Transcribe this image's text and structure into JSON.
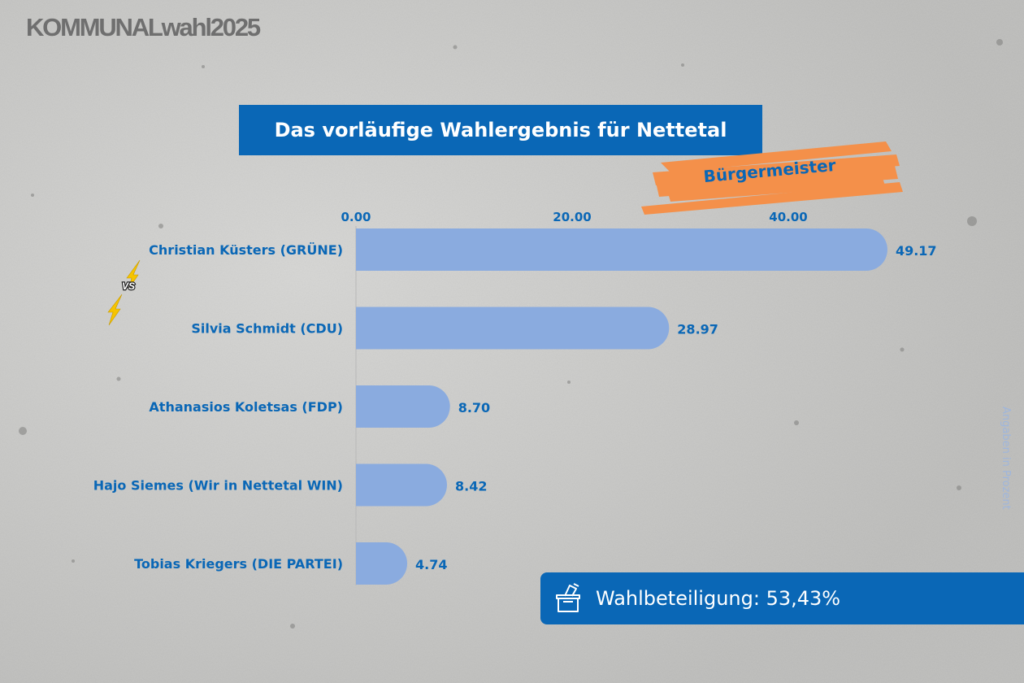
{
  "logo": "KOMMUNALwahl2025",
  "title": "Das vorläufige Wahlergebnis für Nettetal",
  "subtitle": "Bürgermeister",
  "vs_label": "VS",
  "turnout_label": "Wahlbeteiligung: 53,43%",
  "unit_note": "Angaben in Prozent",
  "colors": {
    "brand_blue": "#0a67b6",
    "bar": "#8aabdf",
    "accent_orange": "#f4904a"
  },
  "icons": {
    "ballot": "ballot-box-icon",
    "lightning": "lightning-icon"
  },
  "chart_data": {
    "type": "bar",
    "orientation": "horizontal",
    "categories": [
      "Christian Küsters (GRÜNE)",
      "Silvia Schmidt (CDU)",
      "Athanasios Koletsas (FDP)",
      "Hajo Siemes (Wir in Nettetal WIN)",
      "Tobias Kriegers (DIE PARTEI)"
    ],
    "values": [
      49.17,
      28.97,
      8.7,
      8.42,
      4.74
    ],
    "value_labels": [
      "49.17",
      "28.97",
      "8.70",
      "8.42",
      "4.74"
    ],
    "x_ticks": [
      0,
      20,
      40
    ],
    "x_tick_labels": [
      "0.00",
      "20.00",
      "40.00"
    ],
    "xlim": [
      0,
      50
    ],
    "axis_position": "top",
    "grid": false,
    "title": "Das vorläufige Wahlergebnis für Nettetal",
    "xlabel": "",
    "ylabel": ""
  }
}
